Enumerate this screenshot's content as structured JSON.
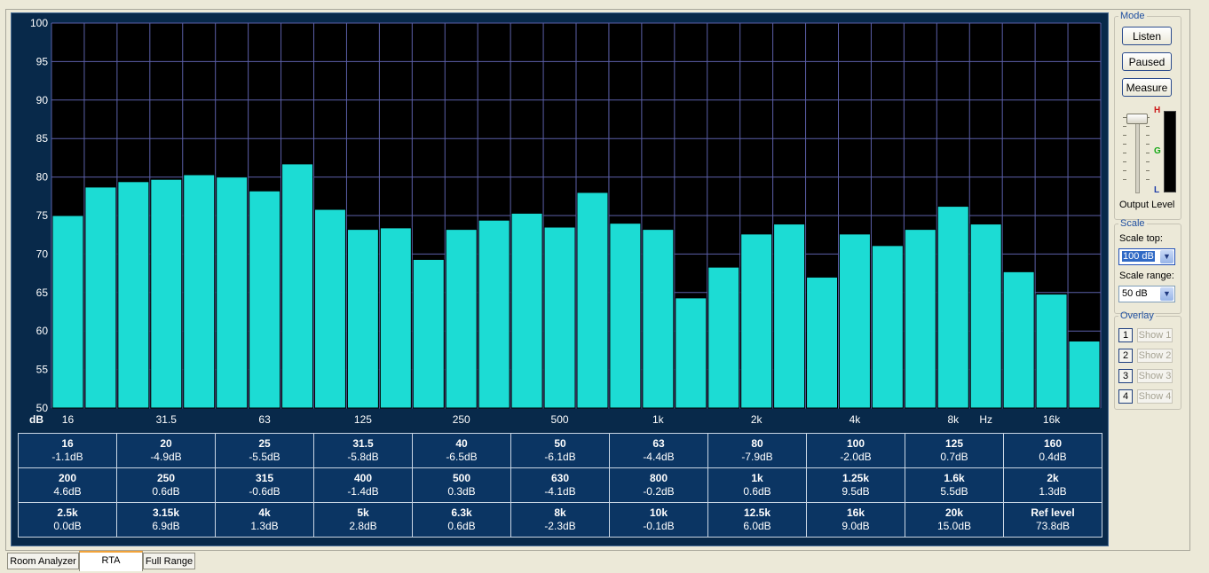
{
  "chart_data": {
    "type": "bar",
    "ylim": [
      50,
      100
    ],
    "yticks": [
      50,
      55,
      60,
      65,
      70,
      75,
      80,
      85,
      90,
      95,
      100
    ],
    "ylabel": "dB",
    "xlabel": "Hz",
    "xtick_labels": [
      "16",
      "31.5",
      "63",
      "125",
      "250",
      "500",
      "1k",
      "2k",
      "4k",
      "8k",
      "16k"
    ],
    "categories": [
      "16",
      "20",
      "25",
      "31.5",
      "40",
      "50",
      "63",
      "80",
      "100",
      "125",
      "160",
      "200",
      "250",
      "315",
      "400",
      "500",
      "630",
      "800",
      "1k",
      "1.25k",
      "1.6k",
      "2k",
      "2.5k",
      "3.15k",
      "4k",
      "5k",
      "6.3k",
      "8k",
      "10k",
      "12.5k",
      "16k",
      "20k"
    ],
    "values": [
      75.0,
      78.7,
      79.4,
      79.7,
      80.3,
      80.0,
      78.2,
      81.7,
      75.8,
      73.2,
      73.4,
      69.3,
      73.2,
      74.4,
      75.3,
      73.5,
      78.0,
      74.0,
      73.2,
      64.3,
      68.3,
      72.6,
      73.9,
      67.0,
      72.6,
      71.1,
      73.2,
      76.2,
      73.9,
      67.7,
      64.8,
      58.7
    ],
    "bar_color": "#1cdcd4",
    "background": "#000000",
    "grid": true,
    "grid_color": "#5b5fa8"
  },
  "table": {
    "rows": [
      [
        {
          "band": "16",
          "val": "-1.1dB"
        },
        {
          "band": "20",
          "val": "-4.9dB"
        },
        {
          "band": "25",
          "val": "-5.5dB"
        },
        {
          "band": "31.5",
          "val": "-5.8dB"
        },
        {
          "band": "40",
          "val": "-6.5dB"
        },
        {
          "band": "50",
          "val": "-6.1dB"
        },
        {
          "band": "63",
          "val": "-4.4dB"
        },
        {
          "band": "80",
          "val": "-7.9dB"
        },
        {
          "band": "100",
          "val": "-2.0dB"
        },
        {
          "band": "125",
          "val": "0.7dB"
        },
        {
          "band": "160",
          "val": "0.4dB"
        }
      ],
      [
        {
          "band": "200",
          "val": "4.6dB"
        },
        {
          "band": "250",
          "val": "0.6dB"
        },
        {
          "band": "315",
          "val": "-0.6dB"
        },
        {
          "band": "400",
          "val": "-1.4dB"
        },
        {
          "band": "500",
          "val": "0.3dB"
        },
        {
          "band": "630",
          "val": "-4.1dB"
        },
        {
          "band": "800",
          "val": "-0.2dB"
        },
        {
          "band": "1k",
          "val": "0.6dB"
        },
        {
          "band": "1.25k",
          "val": "9.5dB"
        },
        {
          "band": "1.6k",
          "val": "5.5dB"
        },
        {
          "band": "2k",
          "val": "1.3dB"
        }
      ],
      [
        {
          "band": "2.5k",
          "val": "0.0dB"
        },
        {
          "band": "3.15k",
          "val": "6.9dB"
        },
        {
          "band": "4k",
          "val": "1.3dB"
        },
        {
          "band": "5k",
          "val": "2.8dB"
        },
        {
          "band": "6.3k",
          "val": "0.6dB"
        },
        {
          "band": "8k",
          "val": "-2.3dB"
        },
        {
          "band": "10k",
          "val": "-0.1dB"
        },
        {
          "band": "12.5k",
          "val": "6.0dB"
        },
        {
          "band": "16k",
          "val": "9.0dB"
        },
        {
          "band": "20k",
          "val": "15.0dB"
        },
        {
          "band": "Ref level",
          "val": "73.8dB"
        }
      ]
    ]
  },
  "mode": {
    "title": "Mode",
    "listen": "Listen",
    "paused": "Paused",
    "measure": "Measure",
    "output_level": "Output Level",
    "meter_labels": [
      "H",
      "G",
      "L"
    ]
  },
  "scale": {
    "title": "Scale",
    "top_label": "Scale top:",
    "top_value": "100 dB",
    "range_label": "Scale range:",
    "range_value": "50 dB"
  },
  "overlay": {
    "title": "Overlay",
    "items": [
      {
        "num": "1",
        "label": "Show 1"
      },
      {
        "num": "2",
        "label": "Show 2"
      },
      {
        "num": "3",
        "label": "Show 3"
      },
      {
        "num": "4",
        "label": "Show 4"
      }
    ]
  },
  "tabs": [
    {
      "label": "Room Analyzer",
      "active": false
    },
    {
      "label": "RTA",
      "active": true
    },
    {
      "label": "Full Range",
      "active": false
    }
  ]
}
